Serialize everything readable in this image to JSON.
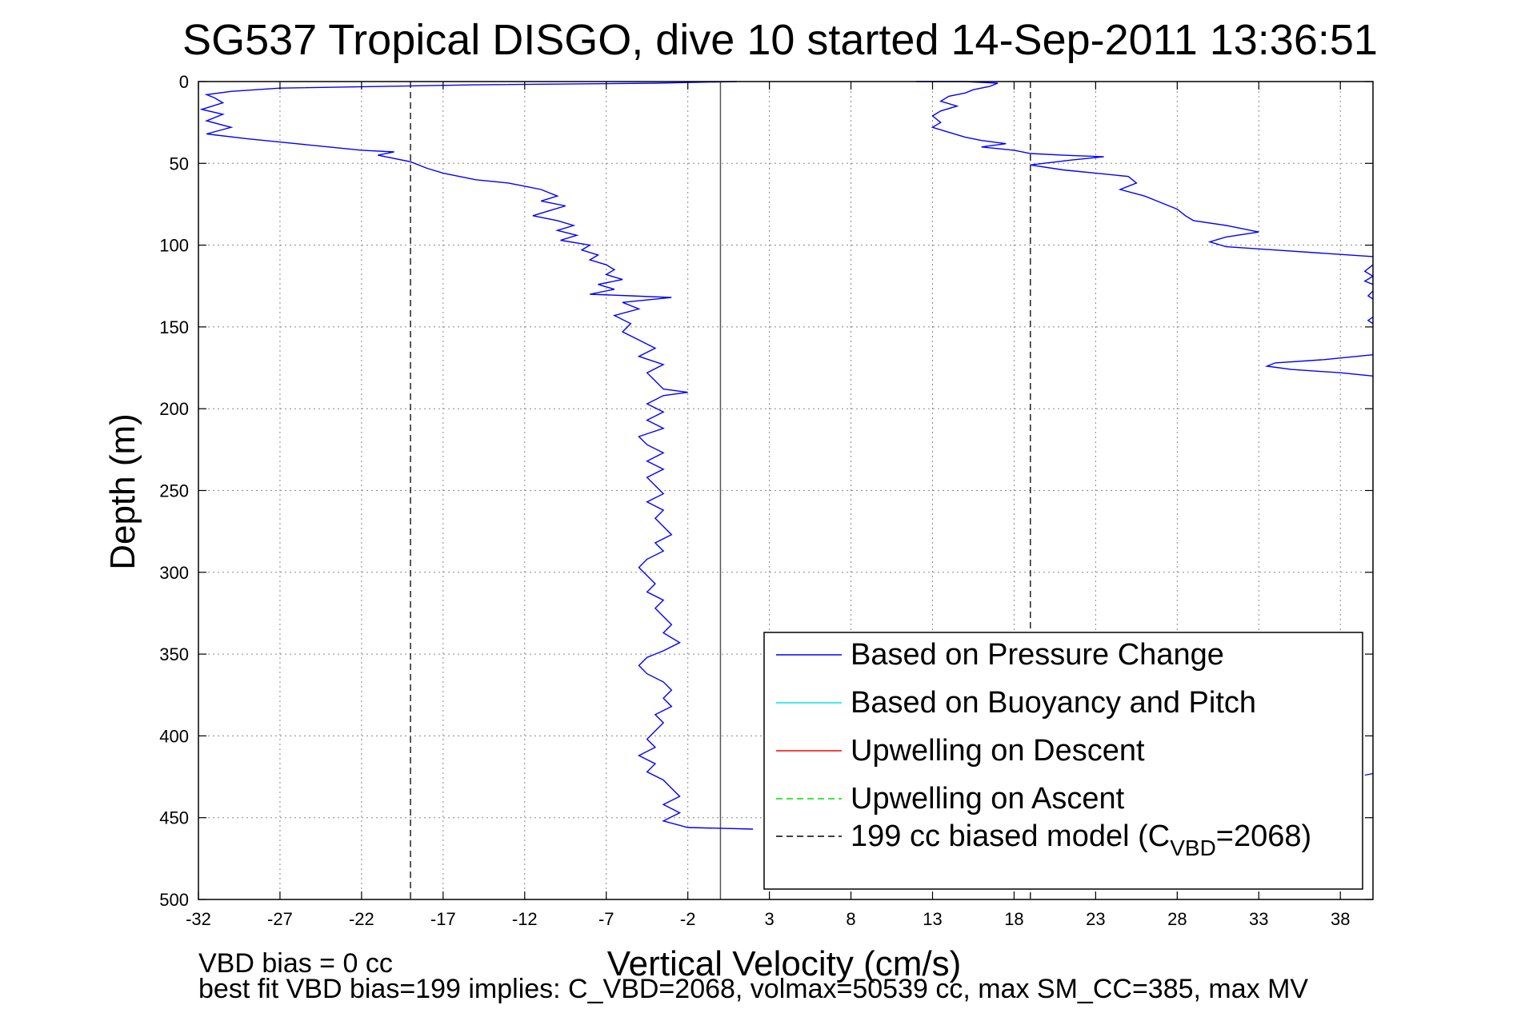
{
  "chart_data": {
    "type": "line",
    "title": "SG537 Tropical DISGO, dive 10 started 14-Sep-2011 13:36:51",
    "xlabel": "Vertical Velocity (cm/s)",
    "ylabel": "Depth (m)",
    "xlim": [
      -32,
      40
    ],
    "ylim": [
      500,
      0
    ],
    "y_reversed": true,
    "grid": true,
    "x_ticks": [
      -32,
      -27,
      -22,
      -17,
      -12,
      -7,
      -2,
      3,
      8,
      13,
      18,
      23,
      28,
      33,
      38
    ],
    "y_ticks": [
      0,
      50,
      100,
      150,
      200,
      250,
      300,
      350,
      400,
      450,
      500
    ],
    "legend_position": "bottom-right",
    "colors": {
      "pressure": "#0000ff",
      "buoyancy": "#00e5e5",
      "descent": "#ff0000",
      "ascent": "#00e000",
      "model": "#000000",
      "zero_line": "#555555",
      "grid": "#888888"
    },
    "series": [
      {
        "name": "Based on Pressure Change",
        "style": "solid",
        "color": "#0000ff",
        "points": [
          [
            1,
            0
          ],
          [
            -4,
            1
          ],
          [
            -15,
            2
          ],
          [
            -27,
            4
          ],
          [
            -30,
            6
          ],
          [
            -31.5,
            8
          ],
          [
            -31,
            10
          ],
          [
            -30.5,
            13
          ],
          [
            -31.8,
            17
          ],
          [
            -30.5,
            20
          ],
          [
            -31.5,
            24
          ],
          [
            -30,
            28
          ],
          [
            -31.5,
            32
          ],
          [
            -29,
            35
          ],
          [
            -26,
            38
          ],
          [
            -24,
            40
          ],
          [
            -22,
            42
          ],
          [
            -20,
            43
          ],
          [
            -21,
            45
          ],
          [
            -19,
            49
          ],
          [
            -18,
            53
          ],
          [
            -17,
            56
          ],
          [
            -16,
            58
          ],
          [
            -15,
            60
          ],
          [
            -13,
            62
          ],
          [
            -12,
            64
          ],
          [
            -11,
            66
          ],
          [
            -10.5,
            68
          ],
          [
            -10,
            70
          ],
          [
            -11,
            73
          ],
          [
            -9.5,
            76
          ],
          [
            -10.5,
            79
          ],
          [
            -11.5,
            82
          ],
          [
            -10,
            85
          ],
          [
            -9,
            88
          ],
          [
            -10,
            91
          ],
          [
            -8.8,
            94
          ],
          [
            -9.8,
            97
          ],
          [
            -8,
            100
          ],
          [
            -8.5,
            103
          ],
          [
            -7.5,
            106
          ],
          [
            -8,
            109
          ],
          [
            -7,
            112
          ],
          [
            -6.5,
            115
          ],
          [
            -7,
            118
          ],
          [
            -6,
            121
          ],
          [
            -7.5,
            124
          ],
          [
            -6.5,
            127
          ],
          [
            -8,
            130
          ],
          [
            -5.5,
            131
          ],
          [
            -3,
            132
          ],
          [
            -6,
            135
          ],
          [
            -5,
            139
          ],
          [
            -6.5,
            143
          ],
          [
            -5.5,
            148
          ],
          [
            -6,
            153
          ],
          [
            -5,
            158
          ],
          [
            -4,
            163
          ],
          [
            -5,
            168
          ],
          [
            -3.5,
            173
          ],
          [
            -4.5,
            178
          ],
          [
            -4,
            183
          ],
          [
            -3.5,
            188
          ],
          [
            -2,
            190
          ],
          [
            -3.5,
            192
          ],
          [
            -4.5,
            197
          ],
          [
            -3.5,
            202
          ],
          [
            -4.5,
            207
          ],
          [
            -3.5,
            212
          ],
          [
            -5,
            217
          ],
          [
            -4.5,
            222
          ],
          [
            -3.5,
            227
          ],
          [
            -4.5,
            232
          ],
          [
            -3.5,
            237
          ],
          [
            -4.5,
            242
          ],
          [
            -4,
            247
          ],
          [
            -3.5,
            252
          ],
          [
            -4.5,
            257
          ],
          [
            -3.5,
            262
          ],
          [
            -4,
            267
          ],
          [
            -3.5,
            272
          ],
          [
            -3,
            277
          ],
          [
            -4,
            282
          ],
          [
            -3.5,
            287
          ],
          [
            -4.5,
            292
          ],
          [
            -5,
            297
          ],
          [
            -4.5,
            302
          ],
          [
            -4,
            307
          ],
          [
            -4.5,
            312
          ],
          [
            -3.5,
            317
          ],
          [
            -4,
            322
          ],
          [
            -3.5,
            327
          ],
          [
            -3,
            332
          ],
          [
            -3.5,
            337
          ],
          [
            -2.5,
            343
          ],
          [
            -3.5,
            348
          ],
          [
            -4.5,
            352
          ],
          [
            -5,
            357
          ],
          [
            -4.5,
            362
          ],
          [
            -3.5,
            367
          ],
          [
            -3,
            372
          ],
          [
            -3.5,
            377
          ],
          [
            -3,
            382
          ],
          [
            -4,
            387
          ],
          [
            -3.5,
            392
          ],
          [
            -4,
            397
          ],
          [
            -4.5,
            402
          ],
          [
            -4,
            407
          ],
          [
            -5,
            412
          ],
          [
            -4,
            417
          ],
          [
            -4.5,
            422
          ],
          [
            -3.5,
            427
          ],
          [
            -3,
            432
          ],
          [
            -2.5,
            437
          ],
          [
            -3.5,
            442
          ],
          [
            -2.5,
            447
          ],
          [
            -3.5,
            452
          ],
          [
            -2,
            456
          ],
          [
            2,
            457
          ]
        ]
      },
      {
        "name": "",
        "style": "solid",
        "color": "#0000ff",
        "points": [
          [
            12,
            0
          ],
          [
            15,
            0
          ],
          [
            17,
            1
          ],
          [
            16.5,
            3
          ],
          [
            15.5,
            5
          ],
          [
            15,
            7
          ],
          [
            14,
            9
          ],
          [
            13.5,
            12
          ],
          [
            14.5,
            15
          ],
          [
            13.5,
            18
          ],
          [
            13,
            21
          ],
          [
            13.5,
            25
          ],
          [
            13,
            28
          ],
          [
            14,
            31
          ],
          [
            15,
            34
          ],
          [
            16,
            36
          ],
          [
            17.5,
            38
          ],
          [
            16,
            40
          ],
          [
            18,
            42
          ],
          [
            19,
            44
          ],
          [
            21,
            45
          ],
          [
            23.5,
            46
          ],
          [
            21.5,
            48
          ],
          [
            19,
            51
          ],
          [
            21,
            54
          ],
          [
            23,
            56
          ],
          [
            25,
            58
          ],
          [
            25.5,
            62
          ],
          [
            24.5,
            66
          ],
          [
            26,
            70
          ],
          [
            27,
            74
          ],
          [
            28,
            78
          ],
          [
            28.5,
            82
          ],
          [
            29,
            85
          ],
          [
            31,
            88
          ],
          [
            33,
            92
          ],
          [
            31,
            95
          ],
          [
            30,
            98
          ],
          [
            31,
            101
          ],
          [
            34,
            103
          ],
          [
            37,
            105
          ],
          [
            40,
            107
          ]
        ]
      },
      {
        "name": "",
        "style": "solid",
        "color": "#0000ff",
        "points": [
          [
            40,
            112
          ],
          [
            39.5,
            116
          ],
          [
            40,
            119
          ],
          [
            39.5,
            122
          ],
          [
            40,
            124
          ]
        ]
      },
      {
        "name": "",
        "style": "solid",
        "color": "#0000ff",
        "points": [
          [
            40,
            128
          ],
          [
            39.7,
            131
          ],
          [
            40,
            133
          ]
        ]
      },
      {
        "name": "",
        "style": "solid",
        "color": "#0000ff",
        "points": [
          [
            40,
            144
          ],
          [
            39.7,
            146
          ],
          [
            40,
            148
          ]
        ]
      },
      {
        "name": "",
        "style": "solid",
        "color": "#0000ff",
        "points": [
          [
            40,
            167
          ],
          [
            37,
            170
          ],
          [
            34,
            172
          ],
          [
            33.5,
            174
          ],
          [
            35,
            176
          ],
          [
            38,
            178
          ],
          [
            40,
            180
          ]
        ]
      },
      {
        "name": "",
        "style": "solid",
        "color": "#0000ff",
        "points": [
          [
            39.5,
            424
          ],
          [
            40,
            423
          ]
        ]
      },
      {
        "name": "Based on Buoyancy and Pitch",
        "style": "solid",
        "color": "#00e5e5",
        "points": []
      },
      {
        "name": "Upwelling on Descent",
        "style": "solid",
        "color": "#ff0000",
        "points": []
      },
      {
        "name": "Upwelling on Ascent",
        "style": "dashed",
        "color": "#00e000",
        "points": []
      },
      {
        "name": "199 cc biased model (C",
        "subscript": "VBD",
        "name_suffix": "=2068)",
        "style": "dashed",
        "color": "#000000",
        "points": [],
        "x_lines": [
          -19,
          19
        ]
      }
    ],
    "zero_line_x": 0,
    "footer": {
      "line1": "VBD bias = 0 cc",
      "line2": "best fit VBD bias=199 implies: C_VBD=2068, volmax=50539 cc, max SM_CC=385, max MV"
    }
  }
}
